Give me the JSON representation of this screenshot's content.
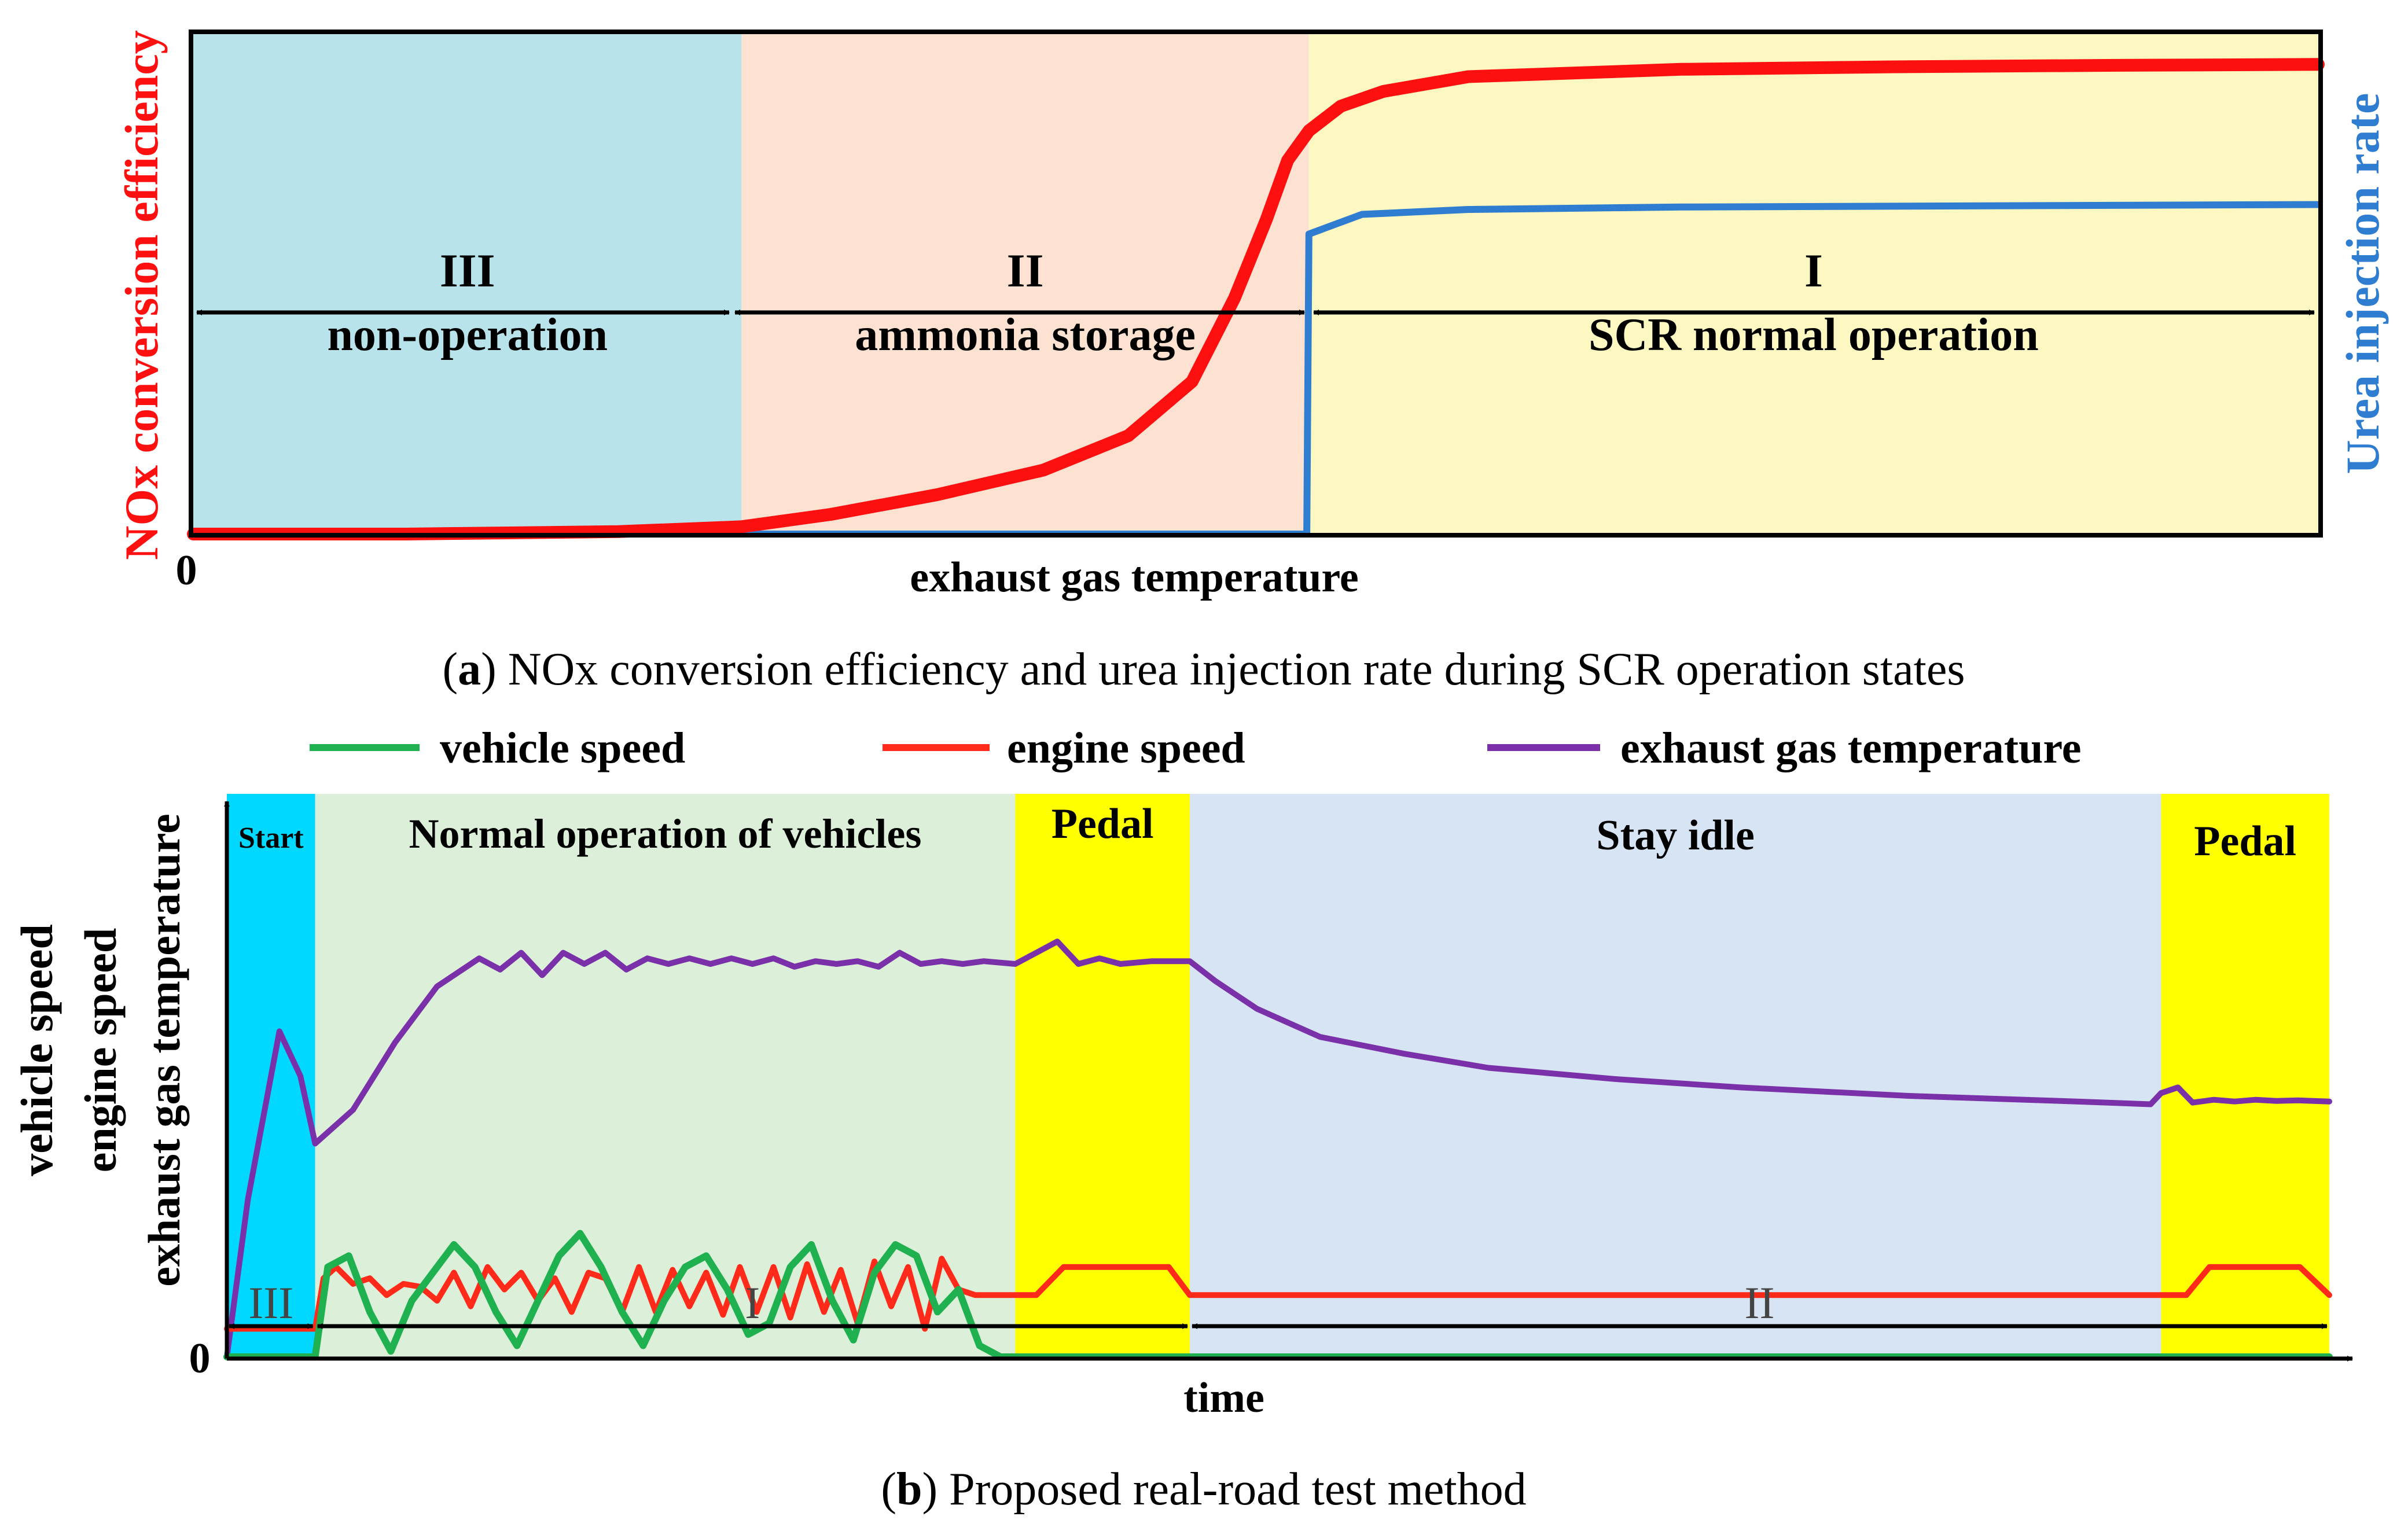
{
  "chart_data": [
    {
      "type": "line",
      "panel": "a",
      "caption_letter": "a",
      "caption_text": ") NOx conversion efficiency and urea injection rate during SCR operation states",
      "xlabel": "exhaust gas temperature",
      "ylabel_left": "NOx conversion efficiency",
      "ylabel_right": "Urea injection rate",
      "origin_label": "0",
      "xlim": [
        0,
        100
      ],
      "ylim": [
        0,
        100
      ],
      "regions": [
        {
          "numeral": "III",
          "label": "non-operation",
          "x_start": 0,
          "x_end": 25.8,
          "color": "#b9e3ea"
        },
        {
          "numeral": "II",
          "label": "ammonia storage",
          "x_start": 25.8,
          "x_end": 52.5,
          "color": "#fde2d2"
        },
        {
          "numeral": "I",
          "label": "SCR normal operation",
          "x_start": 52.5,
          "x_end": 100,
          "color": "#fdf7c2"
        }
      ],
      "series": [
        {
          "name": "NOx conversion efficiency",
          "color": "#ff1010",
          "x": [
            0,
            10,
            20,
            25.8,
            30,
            35,
            40,
            44,
            47,
            49,
            50.5,
            51.5,
            52.5,
            54,
            56,
            60,
            70,
            80,
            90,
            100
          ],
          "y": [
            0,
            0,
            0.5,
            1.5,
            4,
            8,
            13,
            20,
            31,
            48,
            64,
            76,
            82,
            87,
            90,
            93,
            94.5,
            95,
            95.3,
            95.5
          ]
        },
        {
          "name": "Urea injection rate",
          "color": "#2f7dd0",
          "x": [
            25.8,
            40,
            52.4,
            52.5,
            55,
            60,
            70,
            100
          ],
          "y": [
            0,
            0,
            0,
            61,
            65,
            66,
            66.5,
            67
          ]
        }
      ]
    },
    {
      "type": "line",
      "panel": "b",
      "caption_letter": "b",
      "caption_text": ") Proposed real-road test method",
      "xlabel": "time",
      "ylabel_lines": [
        "vehicle speed",
        "engine speed",
        "exhaust gas temperature"
      ],
      "origin_label": "0",
      "xlim": [
        0,
        100
      ],
      "ylim": [
        0,
        100
      ],
      "legend": [
        {
          "name": "vehicle speed",
          "color": "#1fb050"
        },
        {
          "name": "engine speed",
          "color": "#ff2a1a"
        },
        {
          "name": "exhaust gas temperature",
          "color": "#7a30a8"
        }
      ],
      "phases": [
        {
          "label": "Start",
          "x_start": 0,
          "x_end": 4.2,
          "color": "#00d8ff"
        },
        {
          "label": "Normal operation of vehicles",
          "x_start": 4.2,
          "x_end": 37.5,
          "color": "#dcefd8"
        },
        {
          "label": "Pedal",
          "x_start": 37.5,
          "x_end": 45.8,
          "color": "#ffff00"
        },
        {
          "label": "Stay idle",
          "x_start": 45.8,
          "x_end": 92,
          "color": "#d7e4f3"
        },
        {
          "label": "Pedal",
          "x_start": 92,
          "x_end": 100,
          "color": "#ffff00"
        }
      ],
      "states": [
        {
          "numeral": "III",
          "x_start": 0,
          "x_end": 4.2
        },
        {
          "numeral": "I",
          "x_start": 4.2,
          "x_end": 45.8
        },
        {
          "numeral": "II",
          "x_start": 45.8,
          "x_end": 100
        }
      ],
      "series": [
        {
          "name": "exhaust gas temperature",
          "color": "#7a30a8",
          "x": [
            0,
            1,
            2.5,
            3.5,
            4.2,
            6,
            8,
            10,
            12,
            13,
            14,
            15,
            16,
            17,
            18,
            19,
            20,
            21,
            22,
            23,
            24,
            25,
            26,
            27,
            28,
            29,
            30,
            31,
            32,
            33,
            34,
            35,
            36,
            37.5,
            38.5,
            39.5,
            40.5,
            41.5,
            42.5,
            44,
            45.8,
            47,
            49,
            52,
            56,
            60,
            66,
            72,
            80,
            88,
            91.5,
            92,
            92.8,
            93.5,
            94.5,
            95.5,
            96.5,
            97.5,
            98.5,
            100
          ],
          "y": [
            0,
            28,
            58,
            50,
            38,
            44,
            56,
            66,
            71,
            69,
            72,
            68,
            72,
            70,
            72,
            69,
            71,
            70,
            71,
            70,
            71,
            70,
            71,
            69.5,
            70.5,
            70,
            70.5,
            69.5,
            72,
            70,
            70.5,
            70,
            70.5,
            70,
            72,
            74,
            70,
            71,
            70,
            70.5,
            70.5,
            67,
            62,
            57,
            54,
            51.5,
            49.5,
            48,
            46.5,
            45.5,
            45,
            47,
            48,
            45.3,
            45.8,
            45.5,
            45.8,
            45.6,
            45.7,
            45.5
          ]
        },
        {
          "name": "engine speed",
          "color": "#ff2a1a",
          "x": [
            0,
            0.8,
            4.2,
            4.6,
            5.2,
            6.0,
            6.8,
            7.6,
            8.4,
            9.2,
            10.0,
            10.8,
            11.6,
            12.4,
            13.2,
            14.0,
            14.8,
            15.6,
            16.4,
            17.2,
            18.0,
            18.8,
            19.6,
            20.4,
            21.2,
            22.0,
            22.8,
            23.6,
            24.4,
            25.2,
            26.0,
            26.8,
            27.6,
            28.4,
            29.2,
            30.0,
            30.8,
            31.6,
            32.4,
            33.2,
            34.0,
            34.8,
            35.6,
            36.4,
            37.0,
            37.5,
            38.5,
            39.8,
            43.5,
            44.8,
            45.8,
            60,
            80,
            92,
            93.2,
            94.3,
            97.5,
            98.6,
            100
          ],
          "y": [
            5,
            5,
            5,
            14,
            16,
            13,
            14,
            11,
            13,
            12.5,
            10,
            15,
            9,
            16,
            12,
            15,
            10,
            14,
            8,
            15,
            14,
            8,
            16,
            8,
            15.5,
            9,
            15,
            7.5,
            16,
            8,
            16,
            7,
            16.5,
            8,
            15.5,
            6,
            17,
            9,
            16,
            5,
            17.5,
            12,
            11,
            11,
            11,
            11,
            11,
            16,
            16,
            16,
            11,
            11,
            11,
            11,
            11,
            16,
            16,
            16,
            11
          ]
        },
        {
          "name": "vehicle speed",
          "color": "#1fb050",
          "x": [
            0,
            4.2,
            4.8,
            5.8,
            6.8,
            7.8,
            8.8,
            9.8,
            10.8,
            11.8,
            12.8,
            13.8,
            14.8,
            15.8,
            16.8,
            17.8,
            18.8,
            19.8,
            20.8,
            21.8,
            22.8,
            23.8,
            24.8,
            25.8,
            26.8,
            27.8,
            28.8,
            29.8,
            30.8,
            31.8,
            32.8,
            33.8,
            34.8,
            35.8,
            36.8,
            37.5,
            38,
            45.8,
            60,
            80,
            100
          ],
          "y": [
            0,
            0,
            16,
            18,
            8,
            1,
            10,
            15,
            20,
            16,
            8,
            2,
            10,
            18,
            22,
            16,
            8,
            2,
            10,
            16,
            18,
            12,
            4,
            6,
            16,
            20,
            10,
            3,
            15,
            20,
            18,
            8,
            12,
            2,
            0,
            0,
            0,
            0,
            0,
            0,
            0
          ]
        }
      ]
    }
  ]
}
